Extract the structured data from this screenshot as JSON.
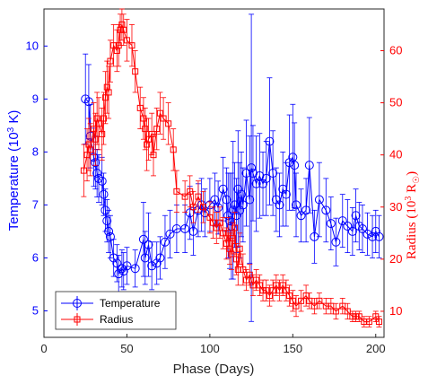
{
  "chart_data": {
    "type": "line",
    "xlabel": "Phase (Days)",
    "ylabel_left": "Temperature (10^3 K)",
    "ylabel_right": "Radius (10^3 R_sun)",
    "xlim": [
      0,
      205
    ],
    "ylim_left": [
      4.5,
      10.7
    ],
    "ylim_right": [
      5,
      68
    ],
    "xticks": [
      0,
      50,
      100,
      150,
      200
    ],
    "yticks_left": [
      5,
      6,
      7,
      8,
      9,
      10
    ],
    "yticks_right": [
      10,
      20,
      30,
      40,
      50,
      60
    ],
    "grid": false,
    "legend_position": "bottom-left",
    "colors": {
      "temperature": "#0000ff",
      "radius": "#ff0000"
    },
    "series": [
      {
        "name": "Temperature",
        "axis": "left",
        "marker": "circle",
        "x": [
          25,
          27,
          28,
          30,
          31,
          32,
          33,
          35,
          36,
          37,
          38,
          39,
          40,
          42,
          44,
          45,
          47,
          48,
          50,
          55,
          60,
          61,
          63,
          65,
          68,
          70,
          73,
          76,
          80,
          85,
          88,
          90,
          93,
          95,
          97,
          100,
          103,
          105,
          108,
          110,
          111,
          112,
          113,
          114,
          115,
          116,
          117,
          118,
          119,
          120,
          122,
          124,
          125,
          126,
          128,
          130,
          132,
          134,
          136,
          138,
          140,
          142,
          144,
          146,
          148,
          150,
          151,
          152,
          155,
          158,
          160,
          163,
          166,
          170,
          173,
          176,
          180,
          183,
          186,
          188,
          190,
          192,
          195,
          198,
          200,
          202
        ],
        "y": [
          9.0,
          8.95,
          8.3,
          7.9,
          7.8,
          7.6,
          7.5,
          7.45,
          7.2,
          6.9,
          6.7,
          6.5,
          6.4,
          6.0,
          5.9,
          5.7,
          5.8,
          5.75,
          5.85,
          5.8,
          6.35,
          6.0,
          6.25,
          5.85,
          5.9,
          6.0,
          6.3,
          6.45,
          6.55,
          6.55,
          6.85,
          6.5,
          6.9,
          7.0,
          6.85,
          7.0,
          7.1,
          6.95,
          7.3,
          7.1,
          6.8,
          6.7,
          6.6,
          6.9,
          7.0,
          6.8,
          7.3,
          6.9,
          7.2,
          7.0,
          7.6,
          7.1,
          7.7,
          7.6,
          7.4,
          7.55,
          7.4,
          7.5,
          8.2,
          7.6,
          7.1,
          7.0,
          7.3,
          7.2,
          7.8,
          7.9,
          7.75,
          7.0,
          6.8,
          6.9,
          7.75,
          6.4,
          7.1,
          6.9,
          6.65,
          6.3,
          6.7,
          6.6,
          6.5,
          6.8,
          6.6,
          6.55,
          6.45,
          6.4,
          6.5,
          6.4
        ],
        "err": [
          0.85,
          0.7,
          0.6,
          0.55,
          0.5,
          0.45,
          0.45,
          0.45,
          0.4,
          0.4,
          0.4,
          0.4,
          0.4,
          0.35,
          0.35,
          0.35,
          0.35,
          0.35,
          0.35,
          0.35,
          0.7,
          0.5,
          0.6,
          0.45,
          0.4,
          0.4,
          0.5,
          0.45,
          0.45,
          0.45,
          0.5,
          0.45,
          0.5,
          0.5,
          0.45,
          0.5,
          0.5,
          0.5,
          0.6,
          0.6,
          0.8,
          0.9,
          1.0,
          1.3,
          0.8,
          0.7,
          1.1,
          0.9,
          0.8,
          0.7,
          1.0,
          1.2,
          2.9,
          0.9,
          0.9,
          0.8,
          0.6,
          0.7,
          1.2,
          0.8,
          0.6,
          0.6,
          0.7,
          0.6,
          0.9,
          1.0,
          0.8,
          0.6,
          0.5,
          0.6,
          0.9,
          0.5,
          0.7,
          0.6,
          0.5,
          0.45,
          0.5,
          0.5,
          0.45,
          0.5,
          0.45,
          0.45,
          0.4,
          0.4,
          0.4,
          0.4
        ]
      },
      {
        "name": "Radius",
        "axis": "right",
        "marker": "square",
        "x": [
          24,
          26,
          27,
          28,
          30,
          31,
          32,
          33,
          35,
          36,
          37,
          38,
          39,
          40,
          42,
          44,
          45,
          46,
          47,
          48,
          50,
          53,
          55,
          58,
          60,
          61,
          62,
          63,
          65,
          66,
          68,
          70,
          72,
          75,
          78,
          80,
          85,
          88,
          90,
          93,
          96,
          100,
          102,
          104,
          106,
          108,
          110,
          111,
          112,
          113,
          114,
          115,
          116,
          117,
          118,
          120,
          122,
          124,
          126,
          128,
          130,
          132,
          134,
          136,
          138,
          140,
          142,
          144,
          146,
          148,
          150,
          152,
          155,
          158,
          160,
          163,
          166,
          170,
          173,
          176,
          180,
          183,
          186,
          188,
          190,
          193,
          196,
          200,
          202
        ],
        "y": [
          37,
          40,
          42,
          41,
          45,
          43,
          47,
          46,
          44,
          47,
          51,
          53,
          52,
          58,
          61,
          60,
          61,
          64,
          65,
          64,
          62,
          61,
          56,
          49,
          47,
          45,
          42,
          43,
          44,
          40,
          45,
          48,
          47,
          46,
          41,
          33,
          32,
          33,
          30,
          32,
          30,
          28,
          27,
          26,
          27,
          25,
          23,
          25,
          22,
          21,
          24,
          26,
          20,
          18,
          22,
          18,
          16,
          17,
          15,
          16,
          15,
          14,
          14,
          13,
          14,
          15,
          14,
          15,
          14,
          13,
          12,
          11,
          12,
          13,
          12,
          11,
          12,
          11,
          11,
          10,
          11,
          10,
          9,
          9,
          9,
          8,
          8,
          9,
          8
        ],
        "err": [
          5,
          5,
          5,
          5,
          5,
          5,
          5,
          5,
          5,
          5,
          5,
          5,
          5,
          4,
          4,
          4,
          4,
          3,
          3,
          3,
          4,
          4,
          4,
          4,
          4,
          4,
          5,
          4,
          4,
          4,
          4,
          4,
          4,
          4,
          4,
          4,
          3,
          3,
          3,
          3,
          3,
          3,
          3,
          3,
          3,
          3,
          3,
          3,
          3,
          3,
          3,
          3,
          3,
          3,
          3,
          3,
          2,
          2,
          2,
          2,
          2,
          2,
          2,
          2,
          2,
          2,
          2,
          2,
          2,
          2,
          2,
          2,
          2,
          2,
          1.5,
          1.5,
          1.5,
          1.5,
          1.5,
          1.5,
          1.5,
          1.5,
          1,
          1,
          1,
          1,
          1,
          1,
          1
        ]
      }
    ]
  }
}
